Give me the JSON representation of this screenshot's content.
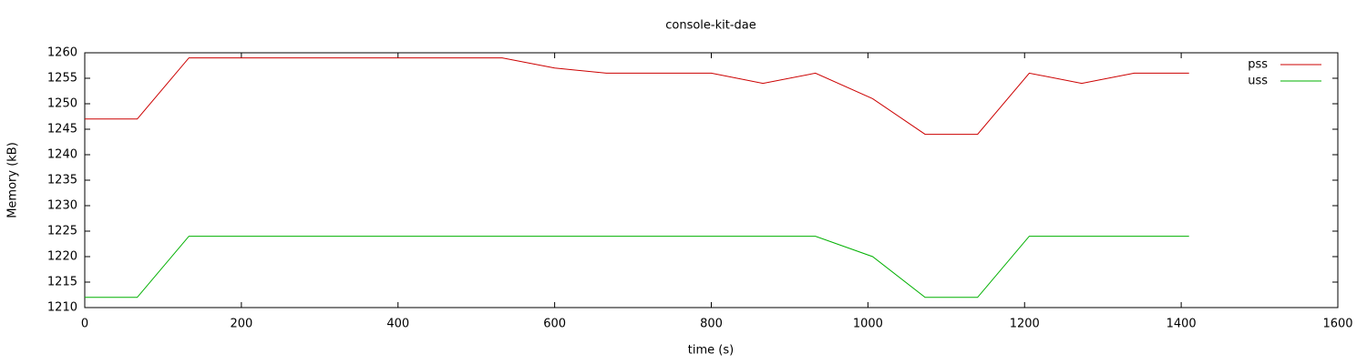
{
  "chart_data": {
    "type": "line",
    "title": "console-kit-dae",
    "xlabel": "time (s)",
    "ylabel": "Memory (kB)",
    "x": [
      0,
      67,
      133,
      200,
      267,
      333,
      400,
      466,
      533,
      600,
      666,
      733,
      800,
      866,
      933,
      1006,
      1073,
      1140,
      1206,
      1273,
      1340,
      1410
    ],
    "series": [
      {
        "name": "pss",
        "color": "#cc0000",
        "values": [
          1247,
          1247,
          1259,
          1259,
          1259,
          1259,
          1259,
          1259,
          1259,
          1257,
          1256,
          1256,
          1256,
          1254,
          1256,
          1251,
          1244,
          1244,
          1256,
          1254,
          1256,
          1256
        ]
      },
      {
        "name": "uss",
        "color": "#00b000",
        "values": [
          1212,
          1212,
          1224,
          1224,
          1224,
          1224,
          1224,
          1224,
          1224,
          1224,
          1224,
          1224,
          1224,
          1224,
          1224,
          1220,
          1212,
          1212,
          1224,
          1224,
          1224,
          1224
        ]
      }
    ],
    "xlim": [
      0,
      1600
    ],
    "xticks": [
      0,
      200,
      400,
      600,
      800,
      1000,
      1200,
      1400,
      1600
    ],
    "ylim": [
      1210,
      1260
    ],
    "yticks": [
      1210,
      1215,
      1220,
      1225,
      1230,
      1235,
      1240,
      1245,
      1250,
      1255,
      1260
    ],
    "grid": false,
    "legend": "top-right"
  }
}
